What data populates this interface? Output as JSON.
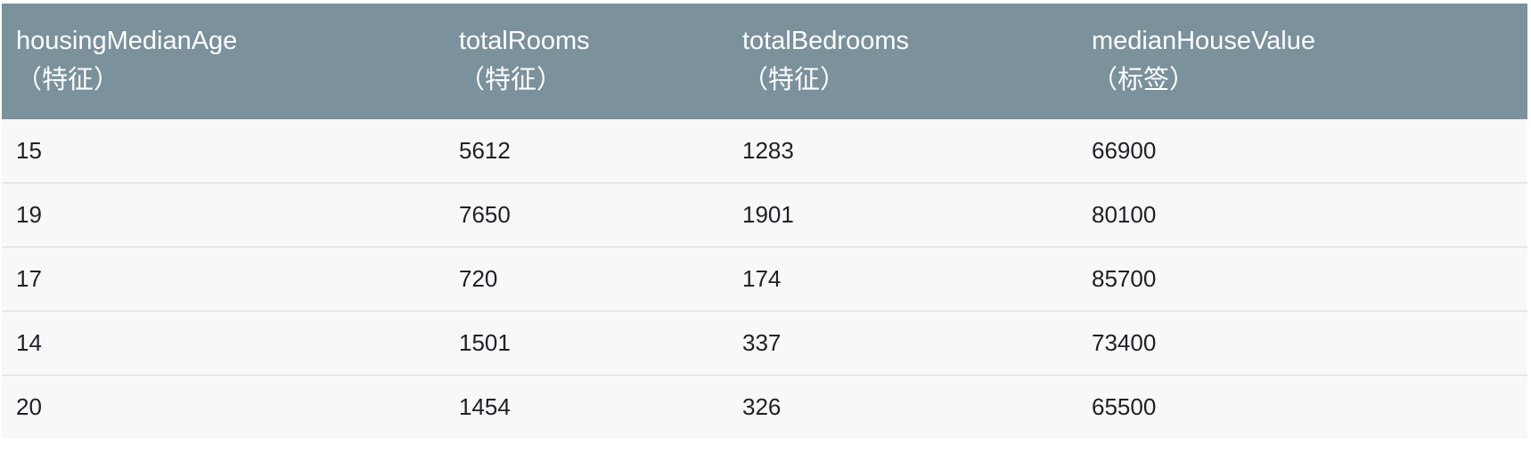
{
  "table": {
    "columns": [
      {
        "name": "housingMedianAge",
        "tag": "（特征）"
      },
      {
        "name": "totalRooms",
        "tag": "（特征）"
      },
      {
        "name": "totalBedrooms",
        "tag": "（特征）"
      },
      {
        "name": "medianHouseValue",
        "tag": "（标签）"
      }
    ],
    "rows": [
      [
        "15",
        "5612",
        "1283",
        "66900"
      ],
      [
        "19",
        "7650",
        "1901",
        "80100"
      ],
      [
        "17",
        "720",
        "174",
        "85700"
      ],
      [
        "14",
        "1501",
        "337",
        "73400"
      ],
      [
        "20",
        "1454",
        "326",
        "65500"
      ]
    ]
  }
}
